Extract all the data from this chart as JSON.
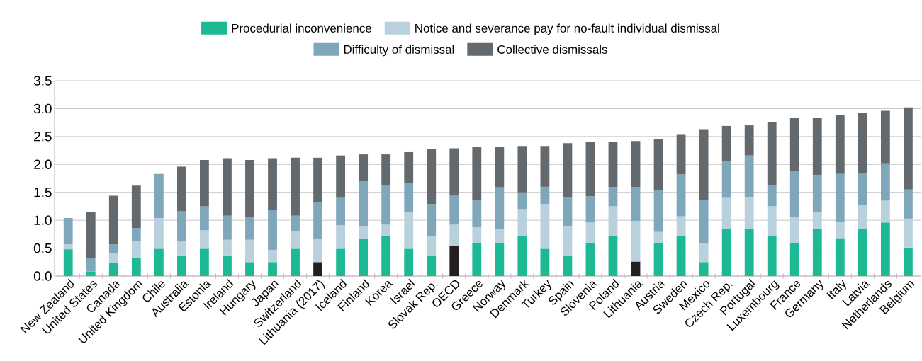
{
  "chart_data": {
    "type": "bar",
    "stacked": true,
    "grid": "y",
    "legend": "top",
    "categories": [
      "New Zealand",
      "United States",
      "Canada",
      "United Kingdom",
      "Chile",
      "Australia",
      "Estonia",
      "Ireland",
      "Hungary",
      "Japan",
      "Switzerland",
      "Lithuania (2017)",
      "Iceland",
      "Finland",
      "Korea",
      "Israel",
      "Slovak Rep.",
      "OECD",
      "Greece",
      "Norway",
      "Denmark",
      "Turkey",
      "Spain",
      "Slovenia",
      "Poland",
      "Lithuania",
      "Austria",
      "Sweden",
      "Mexico",
      "Czech Rep.",
      "Portugal",
      "Luxembourg",
      "France",
      "Germany",
      "Italy",
      "Latvia",
      "Netherlands",
      "Belgium"
    ],
    "ylim": [
      0,
      3.5
    ],
    "yticks": [
      {
        "value": 0,
        "label": "0.0"
      },
      {
        "value": 0.5,
        "label": "0.5"
      },
      {
        "value": 1,
        "label": "1.0"
      },
      {
        "value": 1.5,
        "label": "1.5"
      },
      {
        "value": 2,
        "label": "2.0"
      },
      {
        "value": 2.5,
        "label": "2.5"
      },
      {
        "value": 3,
        "label": "3.0"
      },
      {
        "value": 3.5,
        "label": "3.5"
      }
    ],
    "series": [
      {
        "name": "Procedurial inconvenience",
        "color": "#1db894",
        "colors": [
          "#1db894",
          "#1db894",
          "#1db894",
          "#1db894",
          "#1db894",
          "#1db894",
          "#1db894",
          "#1db894",
          "#1db894",
          "#1db894",
          "#1db894",
          "#231f20",
          "#1db894",
          "#1db894",
          "#1db894",
          "#1db894",
          "#1db894",
          "#231f20",
          "#1db894",
          "#1db894",
          "#1db894",
          "#1db894",
          "#1db894",
          "#1db894",
          "#1db894",
          "#231f20",
          "#1db894",
          "#1db894",
          "#1db894",
          "#1db894",
          "#1db894",
          "#1db894",
          "#1db894",
          "#1db894",
          "#1db894",
          "#1db894",
          "#1db894",
          "#1db894"
        ],
        "values": [
          0.48,
          0.08,
          0.23,
          0.33,
          0.49,
          0.37,
          0.49,
          0.37,
          0.25,
          0.25,
          0.49,
          0.25,
          0.49,
          0.67,
          0.72,
          0.49,
          0.37,
          0.54,
          0.59,
          0.59,
          0.72,
          0.49,
          0.37,
          0.59,
          0.72,
          0.26,
          0.59,
          0.72,
          0.25,
          0.84,
          0.84,
          0.72,
          0.59,
          0.84,
          0.68,
          0.84,
          0.96,
          0.51
        ]
      },
      {
        "name": "Notice and severance pay for no-fault individual dismissal",
        "color": "#b9d1dc",
        "values": [
          0.09,
          0,
          0.18,
          0.29,
          0.55,
          0.25,
          0.33,
          0.28,
          0.4,
          0.22,
          0.31,
          0.42,
          0.42,
          0.23,
          0.2,
          0.66,
          0.34,
          0.38,
          0.29,
          0.25,
          0.48,
          0.8,
          0.53,
          0.37,
          0.53,
          0.73,
          0.2,
          0.35,
          0.33,
          0.56,
          0.58,
          0.53,
          0.47,
          0.31,
          0.28,
          0.43,
          0.39,
          0.52
        ]
      },
      {
        "name": "Difficulty of dismissal",
        "color": "#7fa7bc",
        "values": [
          0.47,
          0.25,
          0.16,
          0.24,
          0.79,
          0.54,
          0.43,
          0.43,
          0.4,
          0.71,
          0.28,
          0.65,
          0.49,
          0.81,
          0.71,
          0.52,
          0.58,
          0.52,
          0.47,
          0.75,
          0.3,
          0.31,
          0.52,
          0.47,
          0.34,
          0.6,
          0.75,
          0.75,
          0.79,
          0.65,
          0.74,
          0.38,
          0.82,
          0.66,
          0.87,
          0.57,
          0.67,
          0.52
        ]
      },
      {
        "name": "Collective dismissals",
        "color": "#63696d",
        "values": [
          0,
          0.82,
          0.87,
          0.76,
          0,
          0.8,
          0.83,
          1.03,
          1.03,
          0.93,
          1.04,
          0.8,
          0.76,
          0.47,
          0.55,
          0.55,
          0.98,
          0.85,
          0.96,
          0.73,
          0.83,
          0.73,
          0.96,
          0.97,
          0.81,
          0.83,
          0.92,
          0.71,
          1.26,
          0.64,
          0.54,
          1.13,
          0.96,
          1.03,
          1.06,
          1.08,
          0.94,
          1.47
        ]
      }
    ]
  }
}
